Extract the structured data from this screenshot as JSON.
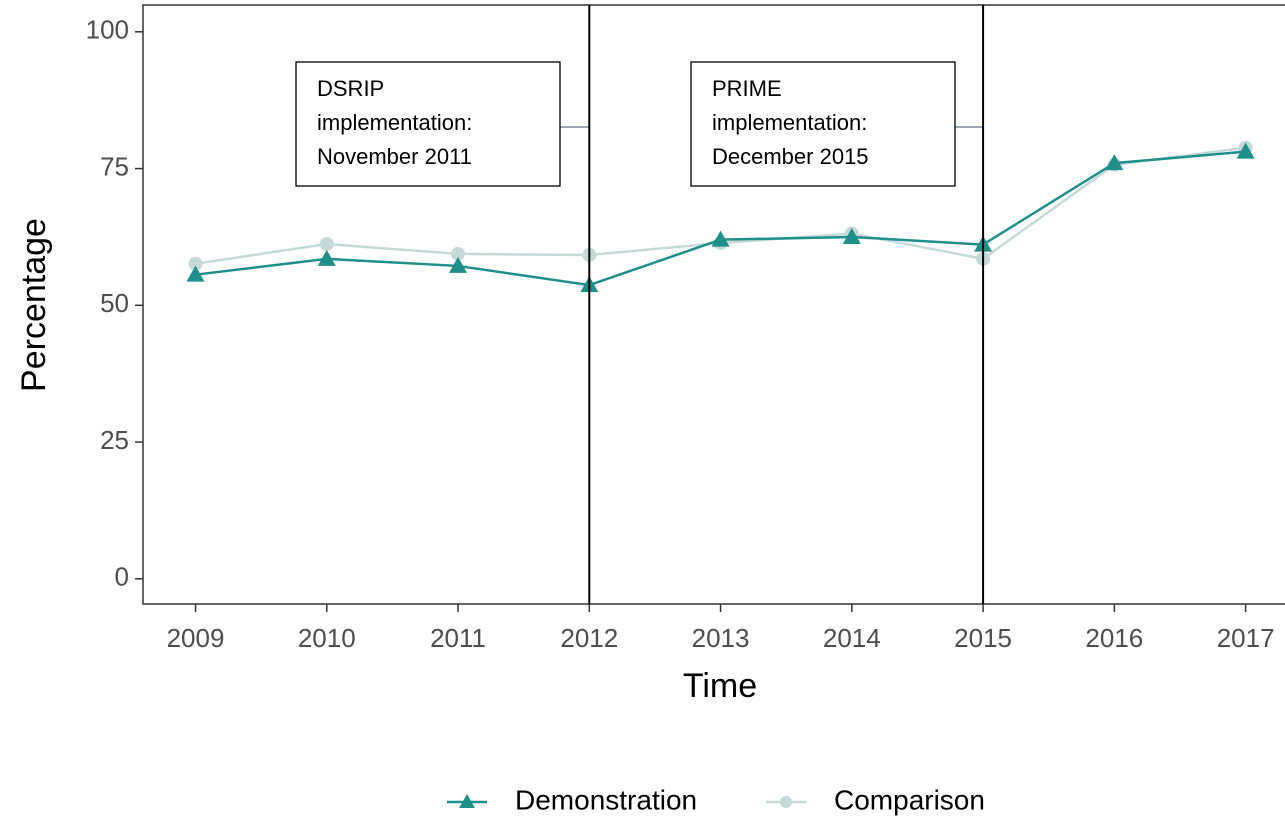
{
  "chart_data": {
    "type": "line",
    "x": [
      2009,
      2010,
      2011,
      2012,
      2013,
      2014,
      2015,
      2016,
      2017
    ],
    "series": [
      {
        "name": "Demonstration",
        "color": "#1f8f8a",
        "marker": "triangle",
        "values": [
          55.6,
          58.5,
          57.2,
          53.7,
          62.0,
          62.5,
          61.1,
          76.0,
          78.1
        ]
      },
      {
        "name": "Comparison",
        "color": "#c5d9d9",
        "marker": "circle",
        "values": [
          57.6,
          61.2,
          59.4,
          59.2,
          61.4,
          63.1,
          58.5,
          75.7,
          78.8
        ]
      }
    ],
    "xlabel": "Time",
    "ylabel": "Percentage",
    "xlim": [
      2008.6,
      2017.3
    ],
    "ylim": [
      -4.6,
      104.9
    ],
    "xticks": [
      2009,
      2010,
      2011,
      2012,
      2013,
      2014,
      2015,
      2016,
      2017
    ],
    "yticks": [
      0,
      25,
      50,
      75,
      100
    ],
    "vlines": [
      2012,
      2015
    ],
    "annotations": [
      {
        "lines": [
          "DSRIP",
          "implementation:",
          "November 2011"
        ]
      },
      {
        "lines": [
          "PRIME",
          "implementation:",
          "December 2015"
        ]
      }
    ],
    "legend": "bottom"
  }
}
